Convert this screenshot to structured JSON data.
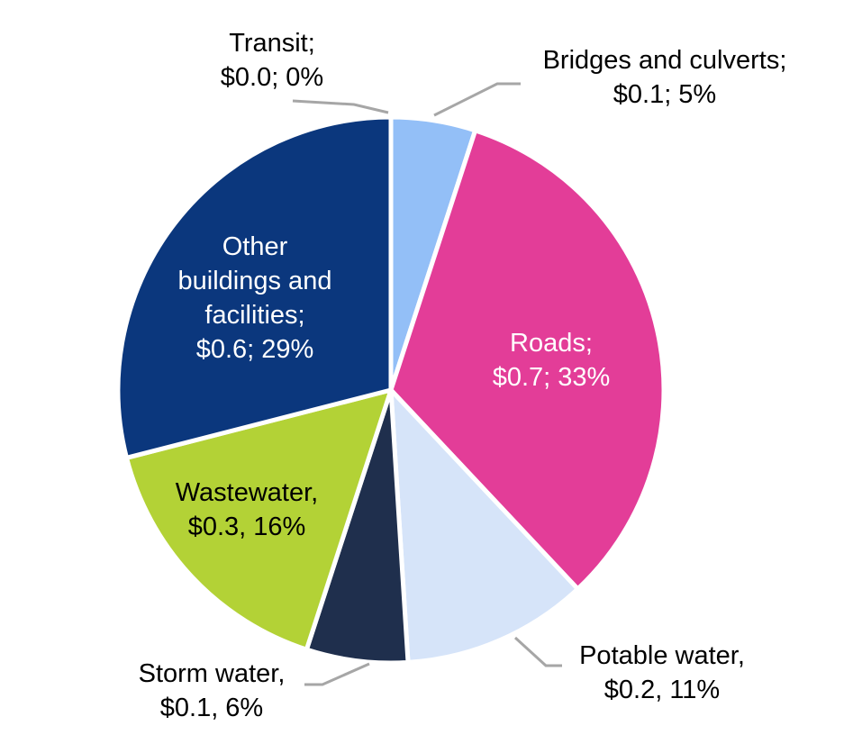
{
  "chart_data": {
    "type": "pie",
    "start_angle_deg": 0,
    "direction": "clockwise",
    "slices": [
      {
        "name": "Bridges and culverts",
        "value": 0.1,
        "percent": 5,
        "label": [
          "Bridges and culverts;",
          "$0.1; 5%"
        ],
        "color": "#93bff7",
        "text_color": "#000000",
        "label_position": "outside"
      },
      {
        "name": "Roads",
        "value": 0.7,
        "percent": 33,
        "label": [
          "Roads;",
          "$0.7; 33%"
        ],
        "color": "#e33d98",
        "text_color": "#ffffff",
        "label_position": "inside"
      },
      {
        "name": "Potable water",
        "value": 0.2,
        "percent": 11,
        "label": [
          "Potable water,",
          "$0.2, 11%"
        ],
        "color": "#d6e4f9",
        "text_color": "#000000",
        "label_position": "outside"
      },
      {
        "name": "Storm water",
        "value": 0.1,
        "percent": 6,
        "label": [
          "Storm water,",
          "$0.1, 6%"
        ],
        "color": "#1f2f4d",
        "text_color": "#000000",
        "label_position": "outside"
      },
      {
        "name": "Wastewater",
        "value": 0.3,
        "percent": 16,
        "label": [
          "Wastewater,",
          "$0.3, 16%"
        ],
        "color": "#b3d236",
        "text_color": "#000000",
        "label_position": "inside"
      },
      {
        "name": "Other buildings and facilities",
        "value": 0.6,
        "percent": 29,
        "label": [
          "Other",
          "buildings and",
          "facilities;",
          "$0.6; 29%"
        ],
        "color": "#0b377d",
        "text_color": "#ffffff",
        "label_position": "inside"
      },
      {
        "name": "Transit",
        "value": 0.0,
        "percent": 0,
        "label": [
          "Transit;",
          "$0.0; 0%"
        ],
        "color": "#7f7f7f",
        "text_color": "#000000",
        "label_position": "outside"
      }
    ]
  }
}
